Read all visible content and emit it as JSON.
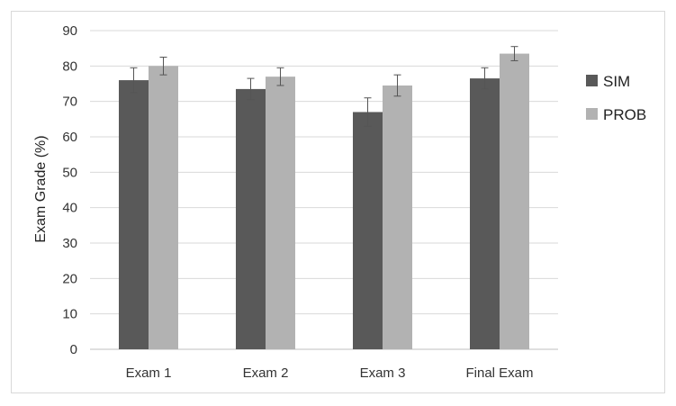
{
  "chart_data": {
    "type": "bar",
    "title": "",
    "xlabel": "",
    "ylabel": "Exam Grade (%)",
    "ylim": [
      0,
      90
    ],
    "yticks": [
      0,
      10,
      20,
      30,
      40,
      50,
      60,
      70,
      80,
      90
    ],
    "grid": true,
    "legend_position": "right",
    "categories": [
      "Exam 1",
      "Exam 2",
      "Exam 3",
      "Final Exam"
    ],
    "series": [
      {
        "name": "SIM",
        "color": "#595959",
        "values": [
          76,
          73.5,
          67,
          76.5
        ],
        "errors": [
          3.5,
          3,
          4,
          3
        ]
      },
      {
        "name": "PROB",
        "color": "#b2b2b2",
        "values": [
          80,
          77,
          74.5,
          83.5
        ],
        "errors": [
          2.5,
          2.5,
          3,
          2
        ]
      }
    ]
  }
}
